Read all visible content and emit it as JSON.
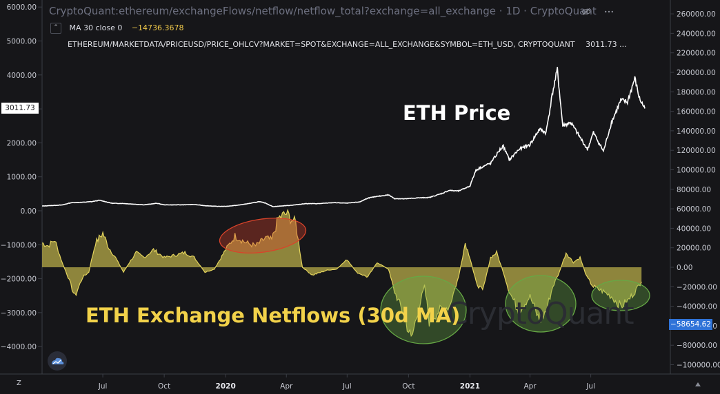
{
  "header": {
    "title": "CryptoQuant:ethereum/exchangeFlows/netflow/netflow_total?exchange=all_exchange · 1D · CryptoQuant",
    "ma_label": "MA 30 close 0",
    "ma_value": "−14736.3678",
    "price_series": "ETHEREUM/MARKETDATA/PRICEUSD/PRICE_OHLCV?MARKET=SPOT&EXCHANGE=ALL_EXCHANGE&SYMBOL=ETH_USD, CRYPTOQUANT",
    "price_value": "3011.73 ..."
  },
  "annotations": {
    "price_label": "ETH Price",
    "netflow_label": "ETH Exchange Netflows (30d MA)",
    "watermark": "CryptoQuant"
  },
  "tags": {
    "left_price": "3011.73",
    "right_netflow": "−58654.62"
  },
  "buttons": {
    "z_label": "Z"
  },
  "colors": {
    "background": "#161619",
    "price_line": "#ffffff",
    "netflow_fill": "#bdb04a",
    "netflow_line": "#e3d35c",
    "red_ellipse": "#d9432a",
    "green_ellipse": "#66a845",
    "blue_tag": "#2f73d8"
  },
  "chart_data": {
    "type": "area",
    "title": "CryptoQuant:ethereum/exchangeFlows/netflow/netflow_total?exchange=all_exchange · 1D · CryptoQuant",
    "left_axis": {
      "ticks": [
        "6000.00",
        "5000.00",
        "4000.00",
        "3000.00",
        "2000.00",
        "1000.00",
        "0.00",
        "−1000.00",
        "−2000.00",
        "−3000.00",
        "−4000.00"
      ],
      "range": [
        -4000,
        6000
      ]
    },
    "right_axis": {
      "ticks": [
        "260000.00",
        "240000.00",
        "220000.00",
        "200000.00",
        "180000.00",
        "160000.00",
        "140000.00",
        "120000.00",
        "100000.00",
        "80000.00",
        "60000.00",
        "40000.00",
        "20000.00",
        "0.00",
        "−20000.00",
        "−40000.00",
        "−60000.00",
        "−80000.00",
        "−100000.00"
      ],
      "range": [
        -100000,
        260000
      ]
    },
    "x_axis": {
      "ticks": [
        {
          "label": "Jul",
          "bold": false
        },
        {
          "label": "Oct",
          "bold": false
        },
        {
          "label": "2020",
          "bold": true
        },
        {
          "label": "Apr",
          "bold": false
        },
        {
          "label": "Jul",
          "bold": false
        },
        {
          "label": "Oct",
          "bold": false
        },
        {
          "label": "2021",
          "bold": true
        },
        {
          "label": "Apr",
          "bold": false
        },
        {
          "label": "Jul",
          "bold": false
        }
      ],
      "start": "2019-04-01",
      "end": "2021-09-20"
    },
    "series": [
      {
        "name": "ETH Price",
        "axis": "left",
        "points": [
          [
            "2019-04-01",
            140
          ],
          [
            "2019-05-01",
            170
          ],
          [
            "2019-05-15",
            240
          ],
          [
            "2019-06-01",
            250
          ],
          [
            "2019-06-15",
            270
          ],
          [
            "2019-06-26",
            310
          ],
          [
            "2019-07-15",
            220
          ],
          [
            "2019-08-01",
            215
          ],
          [
            "2019-09-01",
            175
          ],
          [
            "2019-09-20",
            220
          ],
          [
            "2019-10-01",
            175
          ],
          [
            "2019-10-25",
            175
          ],
          [
            "2019-11-15",
            185
          ],
          [
            "2019-12-01",
            150
          ],
          [
            "2019-12-20",
            130
          ],
          [
            "2020-01-01",
            130
          ],
          [
            "2020-01-20",
            165
          ],
          [
            "2020-02-10",
            230
          ],
          [
            "2020-02-20",
            270
          ],
          [
            "2020-03-01",
            225
          ],
          [
            "2020-03-12",
            120
          ],
          [
            "2020-03-20",
            135
          ],
          [
            "2020-04-10",
            165
          ],
          [
            "2020-04-30",
            210
          ],
          [
            "2020-05-20",
            210
          ],
          [
            "2020-06-10",
            240
          ],
          [
            "2020-07-01",
            225
          ],
          [
            "2020-07-20",
            260
          ],
          [
            "2020-08-01",
            375
          ],
          [
            "2020-08-15",
            420
          ],
          [
            "2020-09-01",
            470
          ],
          [
            "2020-09-10",
            360
          ],
          [
            "2020-09-25",
            350
          ],
          [
            "2020-10-15",
            380
          ],
          [
            "2020-11-01",
            390
          ],
          [
            "2020-11-20",
            510
          ],
          [
            "2020-12-01",
            600
          ],
          [
            "2020-12-15",
            580
          ],
          [
            "2021-01-01",
            730
          ],
          [
            "2021-01-10",
            1200
          ],
          [
            "2021-01-20",
            1300
          ],
          [
            "2021-02-01",
            1400
          ],
          [
            "2021-02-15",
            1800
          ],
          [
            "2021-02-20",
            1900
          ],
          [
            "2021-03-01",
            1500
          ],
          [
            "2021-03-15",
            1800
          ],
          [
            "2021-04-01",
            1950
          ],
          [
            "2021-04-15",
            2400
          ],
          [
            "2021-04-25",
            2300
          ],
          [
            "2021-05-05",
            3500
          ],
          [
            "2021-05-12",
            4150
          ],
          [
            "2021-05-20",
            2500
          ],
          [
            "2021-06-01",
            2600
          ],
          [
            "2021-06-20",
            2000
          ],
          [
            "2021-06-26",
            1800
          ],
          [
            "2021-07-05",
            2300
          ],
          [
            "2021-07-20",
            1750
          ],
          [
            "2021-08-01",
            2600
          ],
          [
            "2021-08-15",
            3250
          ],
          [
            "2021-08-25",
            3200
          ],
          [
            "2021-09-05",
            3900
          ],
          [
            "2021-09-12",
            3300
          ],
          [
            "2021-09-20",
            3011.73
          ]
        ]
      },
      {
        "name": "MA 30 close 0",
        "axis": "right",
        "points": [
          [
            "2019-04-01",
            25000
          ],
          [
            "2019-04-10",
            22000
          ],
          [
            "2019-04-20",
            28000
          ],
          [
            "2019-05-01",
            5000
          ],
          [
            "2019-05-10",
            -10000
          ],
          [
            "2019-05-20",
            -30000
          ],
          [
            "2019-06-01",
            -10000
          ],
          [
            "2019-06-10",
            -5000
          ],
          [
            "2019-06-20",
            25000
          ],
          [
            "2019-07-01",
            35000
          ],
          [
            "2019-07-10",
            20000
          ],
          [
            "2019-07-20",
            10000
          ],
          [
            "2019-08-01",
            -5000
          ],
          [
            "2019-08-10",
            5000
          ],
          [
            "2019-08-20",
            15000
          ],
          [
            "2019-09-01",
            10000
          ],
          [
            "2019-09-15",
            18000
          ],
          [
            "2019-10-01",
            10000
          ],
          [
            "2019-10-15",
            12000
          ],
          [
            "2019-11-01",
            15000
          ],
          [
            "2019-11-15",
            10000
          ],
          [
            "2019-12-01",
            -5000
          ],
          [
            "2019-12-15",
            -2000
          ],
          [
            "2020-01-01",
            18000
          ],
          [
            "2020-01-15",
            32000
          ],
          [
            "2020-02-01",
            25000
          ],
          [
            "2020-02-15",
            22000
          ],
          [
            "2020-03-01",
            30000
          ],
          [
            "2020-03-10",
            28000
          ],
          [
            "2020-03-20",
            50000
          ],
          [
            "2020-04-01",
            55000
          ],
          [
            "2020-04-15",
            45000
          ],
          [
            "2020-04-25",
            0
          ],
          [
            "2020-05-10",
            -8000
          ],
          [
            "2020-06-01",
            -3000
          ],
          [
            "2020-06-15",
            -2000
          ],
          [
            "2020-07-01",
            8000
          ],
          [
            "2020-07-15",
            -5000
          ],
          [
            "2020-08-01",
            -10000
          ],
          [
            "2020-08-15",
            5000
          ],
          [
            "2020-09-01",
            -2000
          ],
          [
            "2020-09-10",
            -25000
          ],
          [
            "2020-09-25",
            -50000
          ],
          [
            "2020-10-05",
            -75000
          ],
          [
            "2020-10-15",
            -45000
          ],
          [
            "2020-10-25",
            -20000
          ],
          [
            "2020-11-01",
            -55000
          ],
          [
            "2020-11-15",
            -45000
          ],
          [
            "2020-12-01",
            -40000
          ],
          [
            "2020-12-15",
            -10000
          ],
          [
            "2020-12-25",
            25000
          ],
          [
            "2021-01-01",
            10000
          ],
          [
            "2021-01-10",
            -15000
          ],
          [
            "2021-01-20",
            -25000
          ],
          [
            "2021-02-01",
            10000
          ],
          [
            "2021-02-10",
            15000
          ],
          [
            "2021-02-20",
            -5000
          ],
          [
            "2021-03-01",
            -25000
          ],
          [
            "2021-03-15",
            -45000
          ],
          [
            "2021-04-01",
            -30000
          ],
          [
            "2021-04-15",
            -55000
          ],
          [
            "2021-04-25",
            -45000
          ],
          [
            "2021-05-05",
            -20000
          ],
          [
            "2021-05-15",
            -5000
          ],
          [
            "2021-05-25",
            15000
          ],
          [
            "2021-06-05",
            5000
          ],
          [
            "2021-06-15",
            10000
          ],
          [
            "2021-06-25",
            -10000
          ],
          [
            "2021-07-05",
            -20000
          ],
          [
            "2021-07-20",
            -25000
          ],
          [
            "2021-08-01",
            -30000
          ],
          [
            "2021-08-15",
            -40000
          ],
          [
            "2021-08-25",
            -35000
          ],
          [
            "2021-09-05",
            -25000
          ],
          [
            "2021-09-15",
            -14736.3678
          ]
        ]
      }
    ],
    "highlights": [
      {
        "color": "red",
        "from": "2020-01-01",
        "to": "2020-04-15"
      },
      {
        "color": "green",
        "from": "2020-09-01",
        "to": "2020-12-15"
      },
      {
        "color": "green",
        "from": "2021-02-20",
        "to": "2021-05-30"
      },
      {
        "color": "green",
        "from": "2021-07-01",
        "to": "2021-09-20"
      }
    ],
    "grid": false
  }
}
